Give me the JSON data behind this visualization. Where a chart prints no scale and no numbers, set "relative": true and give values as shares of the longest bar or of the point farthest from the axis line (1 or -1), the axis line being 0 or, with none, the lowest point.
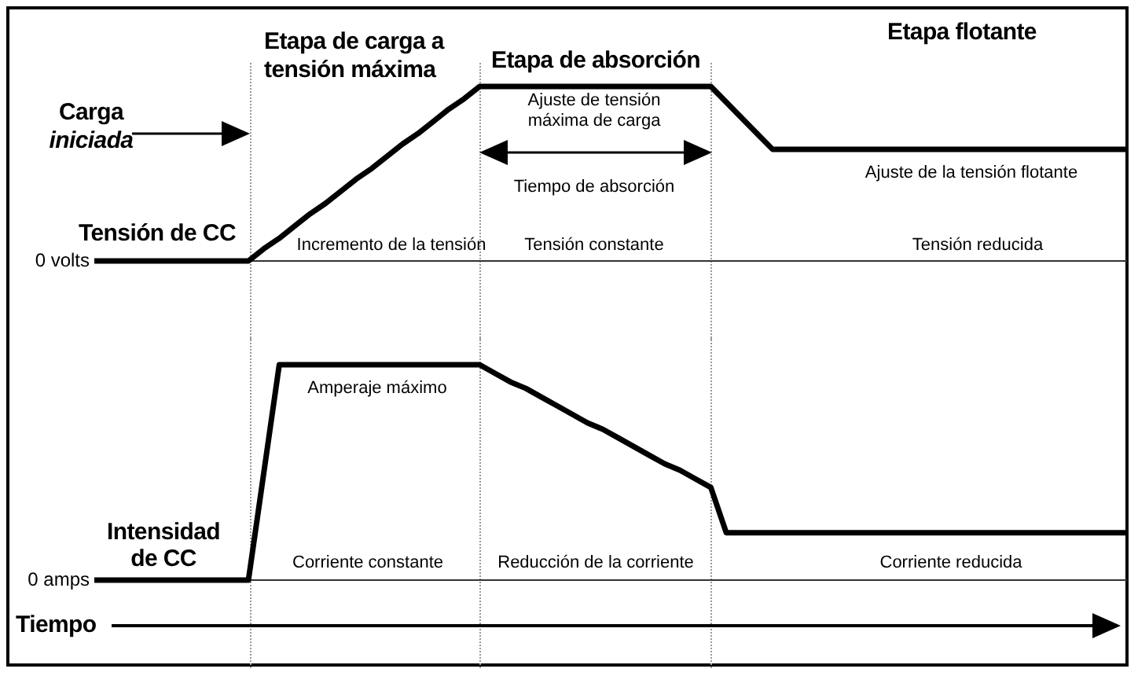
{
  "chart_data": [
    {
      "type": "line",
      "relative": true,
      "ylabel": "Tensión de CC",
      "tick_labels": false,
      "grid": "x",
      "marker": "none",
      "line_style": "solid",
      "legend": false,
      "categories": [
        null,
        null,
        null,
        null,
        null,
        null,
        null,
        null,
        null,
        null,
        null,
        null,
        null,
        null,
        null,
        null,
        null,
        null,
        null,
        null,
        null,
        null,
        null,
        null,
        null,
        null,
        null,
        null,
        null,
        null,
        null,
        null,
        null,
        null,
        null,
        null,
        null,
        null,
        null,
        null,
        null,
        null,
        null,
        null,
        null,
        null,
        null,
        null,
        null,
        null,
        null,
        null,
        null,
        null,
        null,
        null,
        null,
        null,
        null,
        null,
        null,
        null,
        null,
        null,
        null,
        null,
        null,
        null
      ],
      "series": [
        {
          "color": "#000000",
          "values": [
            0,
            0,
            0,
            0,
            0,
            0,
            0,
            0,
            0,
            0,
            0,
            0.07,
            0.13,
            0.2,
            0.27,
            0.33,
            0.4,
            0.47,
            0.53,
            0.6,
            0.67,
            0.73,
            0.8,
            0.87,
            0.93,
            1,
            1,
            1,
            1,
            1,
            1,
            1,
            1,
            1,
            1,
            1,
            1,
            1,
            1,
            1,
            1,
            0.91,
            0.82,
            0.73,
            0.64,
            0.64,
            0.64,
            0.64,
            0.64,
            0.64,
            0.64,
            0.64,
            0.64,
            0.64,
            0.64,
            0.64,
            0.64,
            0.64,
            0.64,
            0.64,
            0.64,
            0.64,
            0.64,
            0.64,
            0.64,
            0.64,
            0.64,
            0.64
          ]
        }
      ],
      "ref_lines": [
        {
          "axis": "y",
          "value": 0,
          "label": "0 volts",
          "color": "#333333",
          "line_style": "solid"
        }
      ],
      "annotations": [
        "Etapa de carga a tensión máxima",
        "Etapa de absorción",
        "Etapa flotante",
        "Carga iniciada",
        "Ajuste de tensión máxima de carga",
        "Tiempo de absorción",
        "Ajuste de la tensión flotante",
        "Incremento de la tensión",
        "Tensión constante",
        "Tensión reducida"
      ]
    },
    {
      "type": "line",
      "relative": true,
      "ylabel": "Intensidad de CC",
      "xlabel": "Tiempo",
      "tick_labels": false,
      "grid": "x",
      "marker": "none",
      "line_style": "solid",
      "legend": false,
      "categories": [
        null,
        null,
        null,
        null,
        null,
        null,
        null,
        null,
        null,
        null,
        null,
        null,
        null,
        null,
        null,
        null,
        null,
        null,
        null,
        null,
        null,
        null,
        null,
        null,
        null,
        null,
        null,
        null,
        null,
        null,
        null,
        null,
        null,
        null,
        null,
        null,
        null,
        null,
        null,
        null,
        null,
        null,
        null,
        null,
        null,
        null,
        null,
        null,
        null,
        null,
        null,
        null,
        null,
        null,
        null,
        null,
        null,
        null,
        null,
        null,
        null,
        null,
        null,
        null,
        null,
        null,
        null,
        null
      ],
      "series": [
        {
          "color": "#000000",
          "values": [
            0,
            0,
            0,
            0,
            0,
            0,
            0,
            0,
            0,
            0,
            0,
            0.5,
            1,
            1,
            1,
            1,
            1,
            1,
            1,
            1,
            1,
            1,
            1,
            1,
            1,
            1,
            0.96,
            0.92,
            0.89,
            0.85,
            0.81,
            0.77,
            0.73,
            0.7,
            0.66,
            0.62,
            0.58,
            0.54,
            0.51,
            0.47,
            0.43,
            0.22,
            0.22,
            0.22,
            0.22,
            0.22,
            0.22,
            0.22,
            0.22,
            0.22,
            0.22,
            0.22,
            0.22,
            0.22,
            0.22,
            0.22,
            0.22,
            0.22,
            0.22,
            0.22,
            0.22,
            0.22,
            0.22,
            0.22,
            0.22,
            0.22,
            0.22,
            0.22
          ]
        }
      ],
      "ref_lines": [
        {
          "axis": "y",
          "value": 0,
          "label": "0 amps",
          "color": "#333333",
          "line_style": "solid"
        }
      ],
      "annotations": [
        "Amperaje máximo",
        "Corriente constante",
        "Reducción de la corriente",
        "Corriente reducida"
      ]
    }
  ]
}
